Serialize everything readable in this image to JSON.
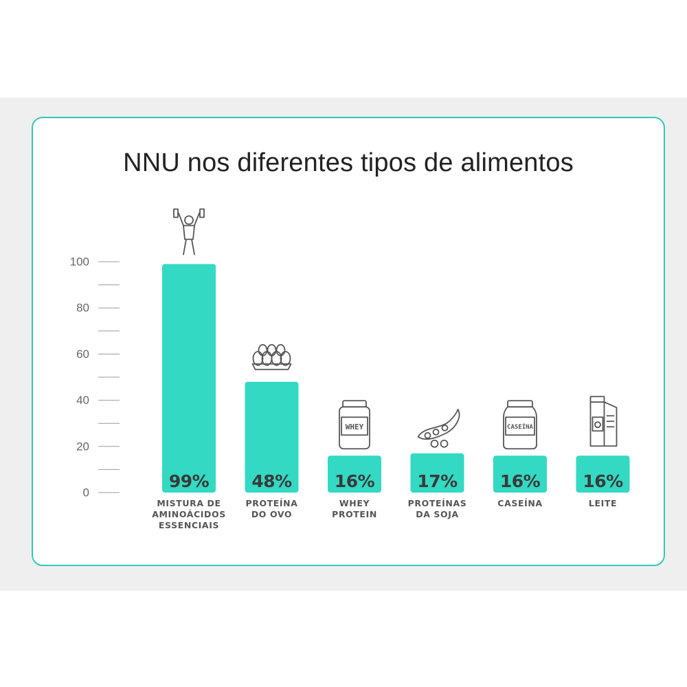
{
  "chart_data": {
    "type": "bar",
    "title": "NNU nos diferentes tipos de alimentos",
    "categories": [
      "MISTURA DE AMINOÁCIDOS ESSENCIAIS",
      "PROTEÍNA DO OVO",
      "WHEY PROTEIN",
      "PROTEÍNAS DA SOJA",
      "CASEÍNA",
      "LEITE"
    ],
    "category_lines": [
      [
        "MISTURA DE",
        "AMINOÁCIDOS",
        "ESSENCIAIS"
      ],
      [
        "PROTEÍNA",
        "DO OVO"
      ],
      [
        "WHEY",
        "PROTEIN"
      ],
      [
        "PROTEÍNAS",
        "DA SOJA"
      ],
      [
        "CASEÍNA"
      ],
      [
        "LEITE"
      ]
    ],
    "values": [
      99,
      48,
      16,
      17,
      16,
      16
    ],
    "value_labels": [
      "99%",
      "48%",
      "16%",
      "17%",
      "16%",
      "16%"
    ],
    "icons": [
      "weightlifter-icon",
      "egg-carton-icon",
      "whey-jar-icon",
      "soybean-icon",
      "casein-jar-icon",
      "milk-carton-icon"
    ],
    "icon_text": {
      "whey": "WHEY",
      "casein": "CASEÍNA"
    },
    "ylim": [
      0,
      100
    ],
    "yticks": [
      0,
      20,
      40,
      60,
      80,
      100
    ],
    "minor_ticks": true,
    "grid": false,
    "legend": "none",
    "xlabel": "",
    "ylabel": "",
    "colors": {
      "bar": "#33d9c2",
      "border": "#33c9b5",
      "band": "#efeff0",
      "icon": "#555555"
    }
  }
}
